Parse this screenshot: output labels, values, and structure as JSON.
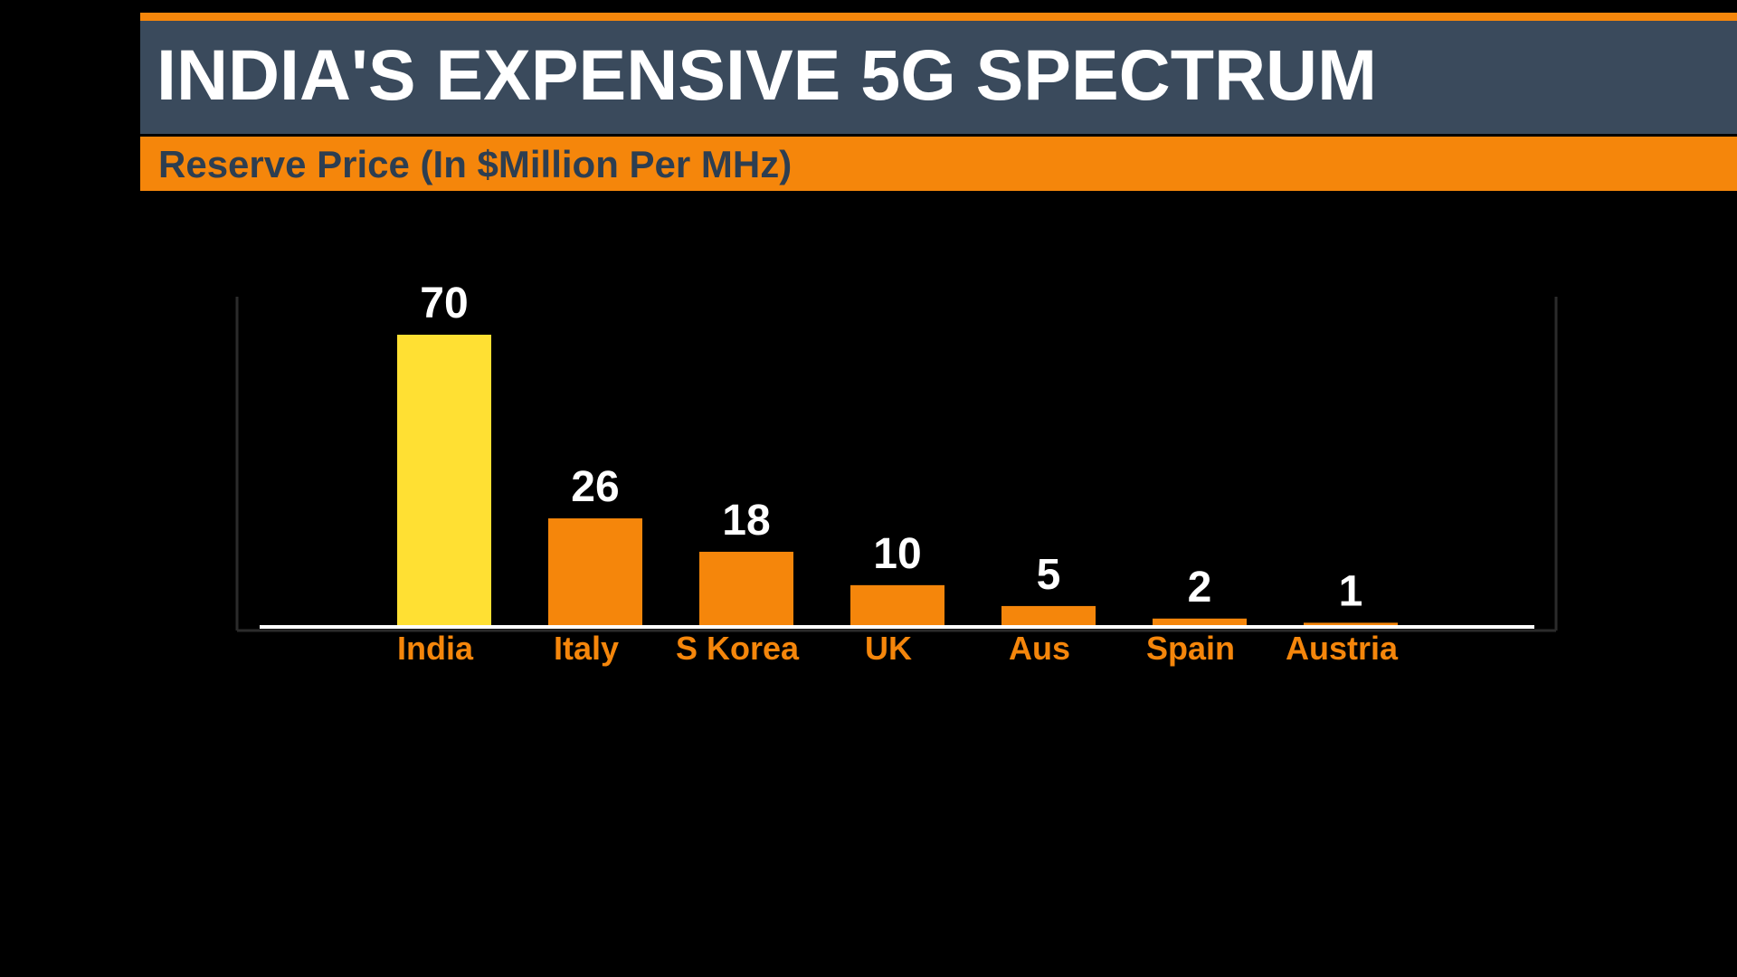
{
  "header": {
    "title": "INDIA'S EXPENSIVE 5G SPECTRUM",
    "subtitle": "Reserve Price (In $Million Per MHz)"
  },
  "colors": {
    "background": "#000000",
    "title_band": "#3a4a5c",
    "accent_orange": "#f5860b",
    "highlight_yellow": "#ffe033",
    "subtitle_text": "#2d3e51",
    "value_label": "#ffffff",
    "baseline": "#ffffff",
    "frame": "#2b2b2b"
  },
  "chart_data": {
    "type": "bar",
    "title": "INDIA'S EXPENSIVE 5G SPECTRUM",
    "subtitle": "Reserve Price (In $Million Per MHz)",
    "categories": [
      "India",
      "Italy",
      "S Korea",
      "UK",
      "Aus",
      "Spain",
      "Austria"
    ],
    "values": [
      70,
      26,
      18,
      10,
      5,
      2,
      1
    ],
    "highlighted": [
      "India"
    ],
    "ylim": [
      0,
      70
    ],
    "data_labels": true,
    "grid": false,
    "legend": "none"
  }
}
